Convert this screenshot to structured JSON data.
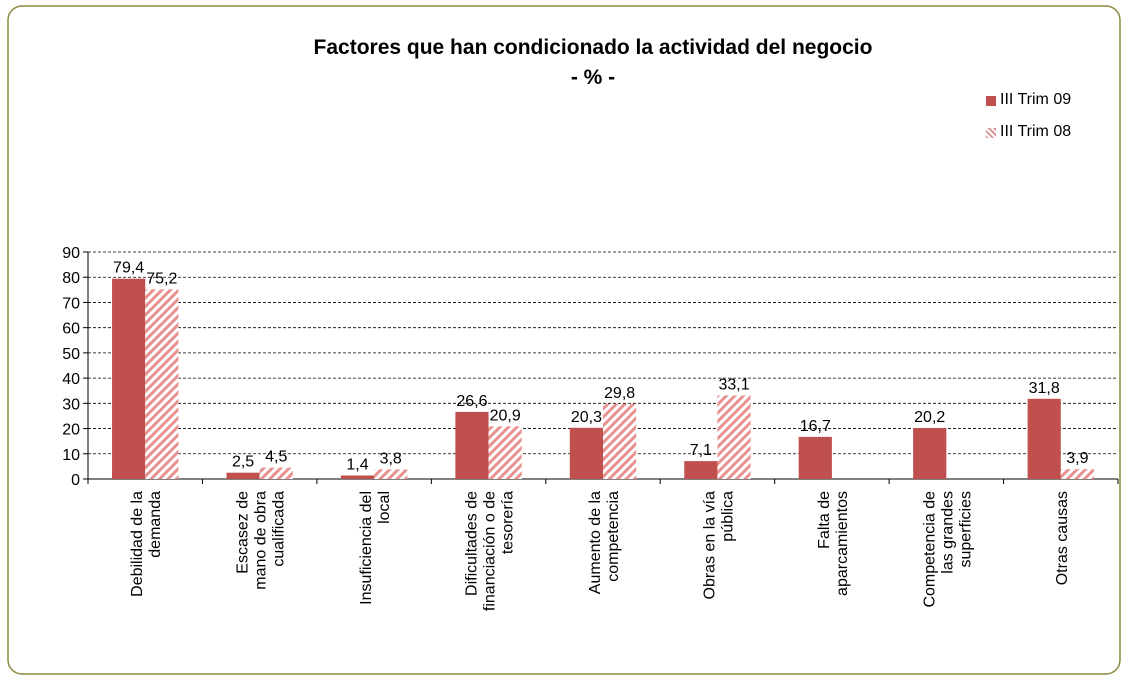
{
  "chart_data": {
    "type": "bar",
    "title": "Factores que han condicionado la actividad del negocio",
    "subtitle": "- % -",
    "categories": [
      [
        "Debilidad de la",
        "demanda"
      ],
      [
        "Escasez de",
        "mano de obra",
        "cualificada"
      ],
      [
        "Insuficiencia del",
        "local"
      ],
      [
        "Dificultades de",
        "financiación o de",
        "tesorería"
      ],
      [
        "Aumento de la",
        "competencia"
      ],
      [
        "Obras en la vía",
        "pública"
      ],
      [
        "Falta de",
        "aparcamientos"
      ],
      [
        "Competencia de",
        "las grandes",
        "superficies"
      ],
      [
        "Otras causas"
      ]
    ],
    "series": [
      {
        "name": "III Trim 09",
        "color": "#c0504d",
        "pattern": "solid",
        "values": [
          79.4,
          2.5,
          1.4,
          26.6,
          20.3,
          7.1,
          16.7,
          20.2,
          31.8
        ],
        "value_labels": [
          "79,4",
          "2,5",
          "1,4",
          "26,6",
          "20,3",
          "7,1",
          "16,7",
          "20,2",
          "31,8"
        ]
      },
      {
        "name": "III Trim 08",
        "color": "#c0504d",
        "pattern": "hatch",
        "values": [
          75.2,
          4.5,
          3.8,
          20.9,
          29.8,
          33.1,
          null,
          null,
          3.9
        ],
        "value_labels": [
          "75,2",
          "4,5",
          "3,8",
          "20,9",
          "29,8",
          "33,1",
          null,
          null,
          "3,9"
        ]
      }
    ],
    "ylim": [
      0,
      90
    ],
    "yticks": [
      0,
      10,
      20,
      30,
      40,
      50,
      60,
      70,
      80,
      90
    ],
    "grid": true,
    "legend_position": "top-right"
  }
}
